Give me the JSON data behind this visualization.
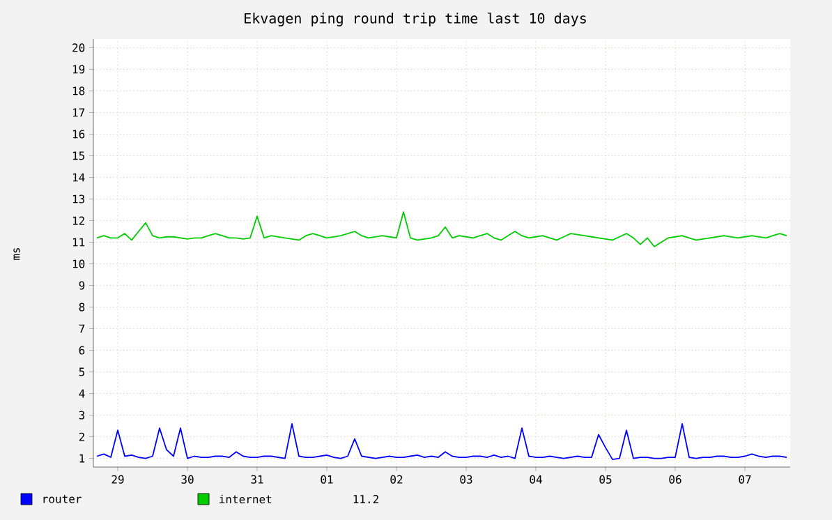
{
  "chart_data": {
    "type": "line",
    "title": "Ekvagen ping round trip time last 10 days",
    "ylabel": "ms",
    "categories": [
      null,
      null,
      null,
      "29",
      null,
      null,
      null,
      null,
      null,
      null,
      null,
      null,
      null,
      "30",
      null,
      null,
      null,
      null,
      null,
      null,
      null,
      null,
      null,
      "31",
      null,
      null,
      null,
      null,
      null,
      null,
      null,
      null,
      null,
      "01",
      null,
      null,
      null,
      null,
      null,
      null,
      null,
      null,
      null,
      "02",
      null,
      null,
      null,
      null,
      null,
      null,
      null,
      null,
      null,
      "03",
      null,
      null,
      null,
      null,
      null,
      null,
      null,
      null,
      null,
      "04",
      null,
      null,
      null,
      null,
      null,
      null,
      null,
      null,
      null,
      "05",
      null,
      null,
      null,
      null,
      null,
      null,
      null,
      null,
      null,
      "06",
      null,
      null,
      null,
      null,
      null,
      null,
      null,
      null,
      null,
      "07",
      null,
      null,
      null,
      null,
      null,
      null
    ],
    "ylim": [
      0.6,
      20.4
    ],
    "yticks": [
      1,
      2,
      3,
      4,
      5,
      6,
      7,
      8,
      9,
      10,
      11,
      12,
      13,
      14,
      15,
      16,
      17,
      18,
      19,
      20
    ],
    "grid": true,
    "legend": "bottom",
    "annotations": [
      "11.2"
    ],
    "series": [
      {
        "name": "router",
        "color": "#0000ff",
        "values": [
          1.1,
          1.2,
          1.05,
          2.3,
          1.1,
          1.15,
          1.05,
          1.0,
          1.1,
          2.4,
          1.4,
          1.1,
          2.4,
          1.0,
          1.1,
          1.05,
          1.05,
          1.1,
          1.1,
          1.05,
          1.3,
          1.1,
          1.05,
          1.05,
          1.1,
          1.1,
          1.05,
          1.0,
          2.6,
          1.1,
          1.05,
          1.05,
          1.1,
          1.15,
          1.05,
          1.0,
          1.1,
          1.9,
          1.1,
          1.05,
          1.0,
          1.05,
          1.1,
          1.05,
          1.05,
          1.1,
          1.15,
          1.05,
          1.1,
          1.05,
          1.3,
          1.1,
          1.05,
          1.05,
          1.1,
          1.1,
          1.05,
          1.15,
          1.05,
          1.1,
          1.0,
          2.4,
          1.1,
          1.05,
          1.05,
          1.1,
          1.05,
          1.0,
          1.05,
          1.1,
          1.05,
          1.05,
          2.1,
          1.5,
          0.95,
          1.0,
          2.3,
          1.0,
          1.05,
          1.05,
          1.0,
          1.0,
          1.05,
          1.05,
          2.6,
          1.05,
          1.0,
          1.05,
          1.05,
          1.1,
          1.1,
          1.05,
          1.05,
          1.1,
          1.2,
          1.1,
          1.05,
          1.1,
          1.1,
          1.05
        ]
      },
      {
        "name": "internet",
        "color": "#00cc00",
        "values": [
          11.2,
          11.3,
          11.2,
          11.2,
          11.4,
          11.1,
          11.5,
          11.9,
          11.3,
          11.2,
          11.25,
          11.25,
          11.2,
          11.15,
          11.2,
          11.2,
          11.3,
          11.4,
          11.3,
          11.2,
          11.2,
          11.15,
          11.2,
          12.2,
          11.2,
          11.3,
          11.25,
          11.2,
          11.15,
          11.1,
          11.3,
          11.4,
          11.3,
          11.2,
          11.25,
          11.3,
          11.4,
          11.5,
          11.3,
          11.2,
          11.25,
          11.3,
          11.25,
          11.2,
          12.4,
          11.2,
          11.1,
          11.15,
          11.2,
          11.3,
          11.7,
          11.2,
          11.3,
          11.25,
          11.2,
          11.3,
          11.4,
          11.2,
          11.1,
          11.3,
          11.5,
          11.3,
          11.2,
          11.25,
          11.3,
          11.2,
          11.1,
          11.25,
          11.4,
          11.35,
          11.3,
          11.25,
          11.2,
          11.15,
          11.1,
          11.25,
          11.4,
          11.2,
          10.9,
          11.2,
          10.8,
          11.0,
          11.2,
          11.25,
          11.3,
          11.2,
          11.1,
          11.15,
          11.2,
          11.25,
          11.3,
          11.25,
          11.2,
          11.25,
          11.3,
          11.25,
          11.2,
          11.3,
          11.4,
          11.3
        ]
      }
    ]
  }
}
